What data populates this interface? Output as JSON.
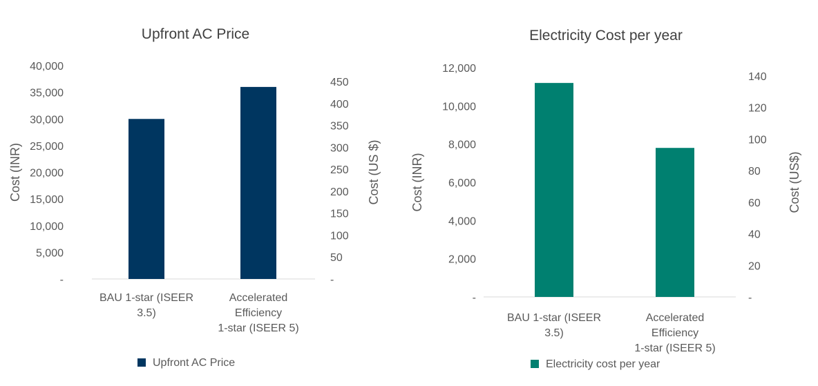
{
  "chart_data": [
    {
      "type": "bar",
      "title": "Upfront AC Price",
      "categories": [
        [
          "BAU 1-star (ISEER",
          "3.5)"
        ],
        [
          "Accelerated",
          "Efficiency",
          "1-star (ISEER 5)"
        ]
      ],
      "series": [
        {
          "name": "Upfront AC Price",
          "values": [
            30000,
            36000
          ],
          "color": "#003660"
        }
      ],
      "ylabel": "Cost (INR)",
      "ylabel_secondary": "Cost (US $)",
      "ylim": [
        0,
        40000
      ],
      "yticks": [
        "-",
        "5,000",
        "10,000",
        "15,000",
        "20,000",
        "25,000",
        "30,000",
        "35,000",
        "40,000"
      ],
      "ylim_secondary": [
        0,
        450
      ],
      "yticks_secondary": [
        "-",
        "50",
        "100",
        "150",
        "200",
        "250",
        "300",
        "350",
        "400",
        "450"
      ],
      "grid": false,
      "legend": "bottom-left"
    },
    {
      "type": "bar",
      "title": "Electricity Cost per year",
      "categories": [
        [
          "BAU 1-star (ISEER",
          "3.5)"
        ],
        [
          "Accelerated",
          "Efficiency",
          "1-star (ISEER 5)"
        ]
      ],
      "series": [
        {
          "name": "Electricity cost per year",
          "values": [
            11200,
            7800
          ],
          "color": "#008070"
        }
      ],
      "ylabel": "Cost (INR)",
      "ylabel_secondary": "Cost (US$)",
      "ylim": [
        0,
        12000
      ],
      "yticks": [
        "-",
        "2,000",
        "4,000",
        "6,000",
        "8,000",
        "10,000",
        "12,000"
      ],
      "ylim_secondary": [
        0,
        140
      ],
      "yticks_secondary": [
        "-",
        "20",
        "40",
        "60",
        "80",
        "100",
        "120",
        "140"
      ],
      "grid": false,
      "legend": "bottom-left"
    }
  ]
}
